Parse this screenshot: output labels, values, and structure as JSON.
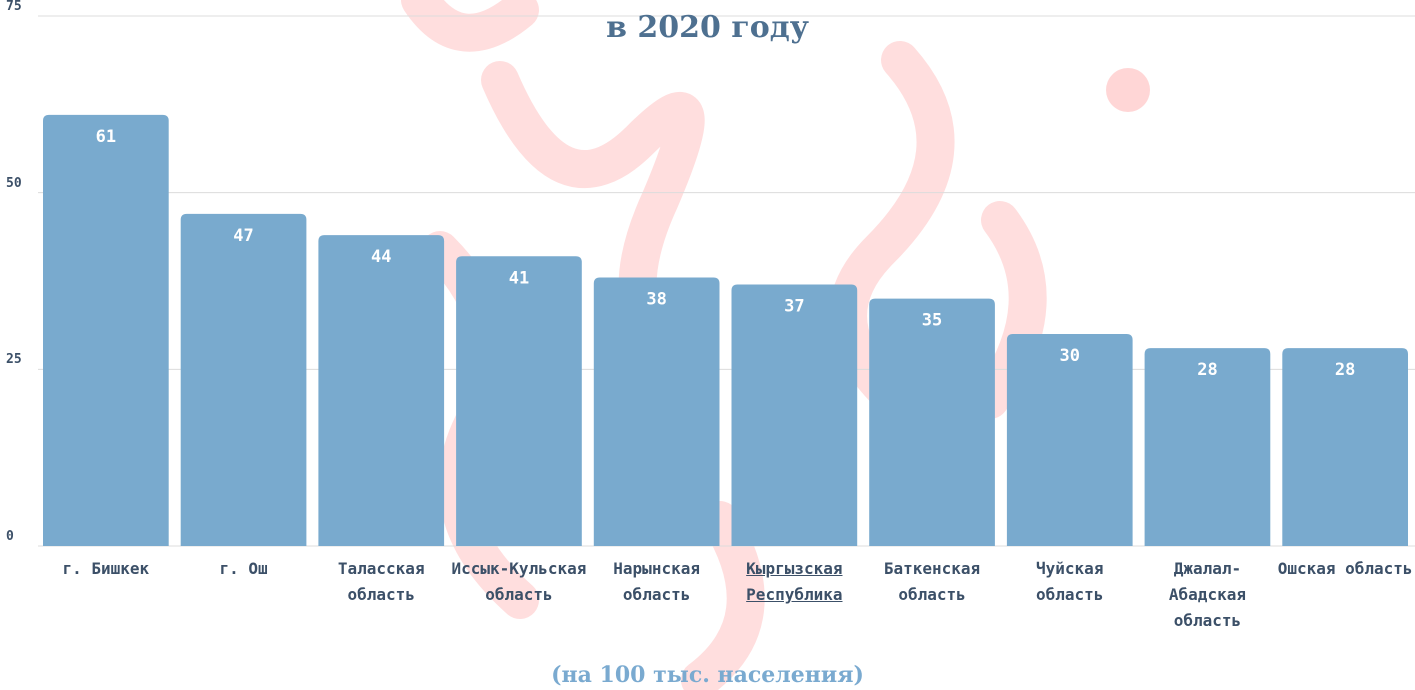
{
  "chart_data": {
    "type": "bar",
    "title": "в 2020 году",
    "subtitle": "(на 100 тыс. населения)",
    "categories": [
      "г. Бишкек",
      "г. Ош",
      "Таласская область",
      "Иссык-Кульская область",
      "Нарынская область",
      "Кыргызская Республика",
      "Баткенская область",
      "Чуйская область",
      "Джалал-Абадская область",
      "Ошская область"
    ],
    "values": [
      61,
      47,
      44,
      41,
      38,
      37,
      35,
      30,
      28,
      28
    ],
    "color": "#79aace",
    "ylim": [
      0,
      75
    ],
    "yticks": [
      0,
      25,
      50,
      75
    ],
    "grid": true
  }
}
